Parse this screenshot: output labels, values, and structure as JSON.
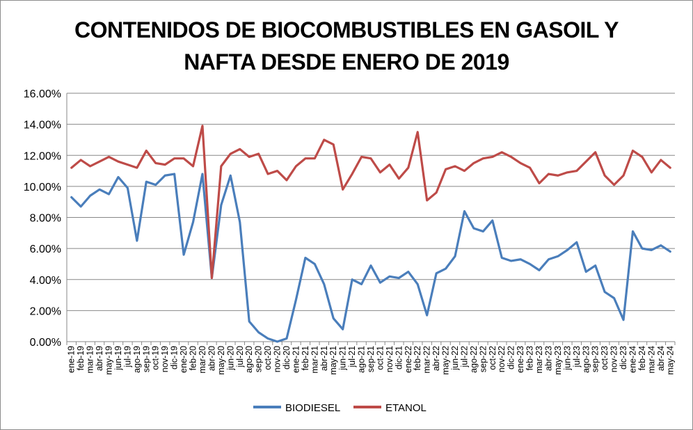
{
  "chart_data": {
    "type": "line",
    "title": [
      "CONTENIDOS DE BIOCOMBUSTIBLES EN GASOIL Y",
      "NAFTA DESDE ENERO DE 2019"
    ],
    "xlabel": "",
    "ylabel": "",
    "ylim": [
      0,
      0.16
    ],
    "yticks": [
      0,
      0.02,
      0.04,
      0.06,
      0.08,
      0.1,
      0.12,
      0.14,
      0.16
    ],
    "ytick_labels": [
      "0.00%",
      "2.00%",
      "4.00%",
      "6.00%",
      "8.00%",
      "10.00%",
      "12.00%",
      "14.00%",
      "16.00%"
    ],
    "grid": true,
    "legend_position": "bottom",
    "categories": [
      "ene-19",
      "feb-19",
      "mar-19",
      "abr-19",
      "may-19",
      "jun-19",
      "jul-19",
      "ago-19",
      "sep-19",
      "oct-19",
      "nov-19",
      "dic-19",
      "ene-20",
      "feb-20",
      "mar-20",
      "abr-20",
      "may-20",
      "jun-20",
      "jul-20",
      "ago-20",
      "sep-20",
      "oct-20",
      "nov-20",
      "dic-20",
      "ene-21",
      "feb-21",
      "mar-21",
      "abr-21",
      "may-21",
      "jun-21",
      "jul-21",
      "ago-21",
      "sep-21",
      "oct-21",
      "nov-21",
      "dic-21",
      "ene-22",
      "feb-22",
      "mar-22",
      "abr-22",
      "may-22",
      "jun-22",
      "jul-22",
      "ago-22",
      "sep-22",
      "oct-22",
      "nov-22",
      "dic-22",
      "ene-23",
      "feb-23",
      "mar-23",
      "abr-23",
      "may-23",
      "jun-23",
      "jul-23",
      "ago-23",
      "sep-23",
      "oct-23",
      "nov-23",
      "dic-23",
      "ene-24",
      "feb-24",
      "mar-24",
      "abr-24",
      "may-24"
    ],
    "series": [
      {
        "name": "BIODIESEL",
        "color": "#4a7ebb",
        "values": [
          0.093,
          0.087,
          0.094,
          0.098,
          0.095,
          0.106,
          0.099,
          0.065,
          0.103,
          0.101,
          0.107,
          0.108,
          0.056,
          0.077,
          0.108,
          0.041,
          0.088,
          0.107,
          0.077,
          0.013,
          0.006,
          0.002,
          0.0,
          0.002,
          0.027,
          0.054,
          0.05,
          0.037,
          0.015,
          0.008,
          0.04,
          0.037,
          0.049,
          0.038,
          0.042,
          0.041,
          0.045,
          0.037,
          0.017,
          0.044,
          0.047,
          0.055,
          0.084,
          0.073,
          0.071,
          0.078,
          0.054,
          0.052,
          0.053,
          0.05,
          0.046,
          0.053,
          0.055,
          0.059,
          0.064,
          0.045,
          0.049,
          0.032,
          0.028,
          0.014,
          0.071,
          0.06,
          0.059,
          0.062,
          0.058
        ]
      },
      {
        "name": "ETANOL",
        "color": "#be4b48",
        "values": [
          0.112,
          0.117,
          0.113,
          0.116,
          0.119,
          0.116,
          0.114,
          0.112,
          0.123,
          0.115,
          0.114,
          0.118,
          0.118,
          0.113,
          0.139,
          0.041,
          0.113,
          0.121,
          0.124,
          0.119,
          0.121,
          0.108,
          0.11,
          0.104,
          0.113,
          0.118,
          0.118,
          0.13,
          0.127,
          0.098,
          0.108,
          0.119,
          0.118,
          0.109,
          0.114,
          0.105,
          0.112,
          0.135,
          0.091,
          0.096,
          0.111,
          0.113,
          0.11,
          0.115,
          0.118,
          0.119,
          0.122,
          0.119,
          0.115,
          0.112,
          0.102,
          0.108,
          0.107,
          0.109,
          0.11,
          0.116,
          0.122,
          0.107,
          0.101,
          0.107,
          0.123,
          0.119,
          0.109,
          0.117,
          0.112
        ]
      }
    ]
  }
}
